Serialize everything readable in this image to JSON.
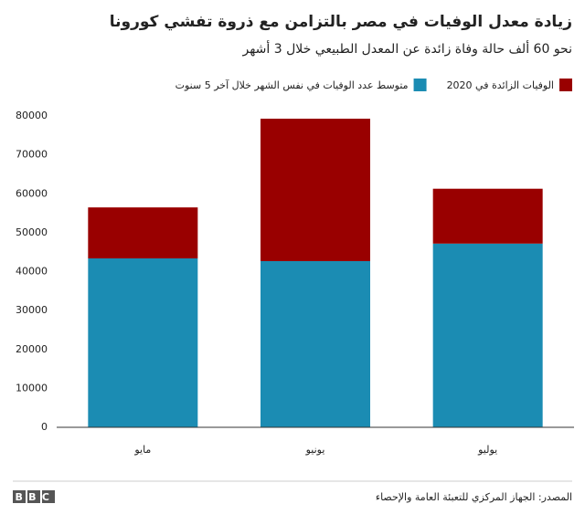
{
  "chart_data": {
    "type": "stacked_bar",
    "title": "زيادة معدل الوفيات في مصر بالتزامن مع ذروة تفشي كورونا",
    "subtitle": "نحو 60 ألف حالة وفاة زائدة عن المعدل الطبيعي خلال 3 أشهر",
    "categories": [
      "مايو",
      "يونيو",
      "يوليو"
    ],
    "series": [
      {
        "name": "متوسط عدد الوفيات في نفس الشهر خلال آخر 5 سنوت",
        "color": "#1b8cb3",
        "values": [
          43400,
          42700,
          47200
        ]
      },
      {
        "name": "الوفيات الزائدة في 2020",
        "color": "#990000",
        "values": [
          13100,
          36600,
          14100
        ]
      }
    ],
    "ylim": [
      0,
      80000
    ],
    "yticks": [
      0,
      10000,
      20000,
      30000,
      40000,
      50000,
      60000,
      70000,
      80000
    ],
    "grid": false,
    "source": "المصدر: الجهاز المركزي للتعبئة العامة والإحصاء",
    "logo": "BBC"
  }
}
